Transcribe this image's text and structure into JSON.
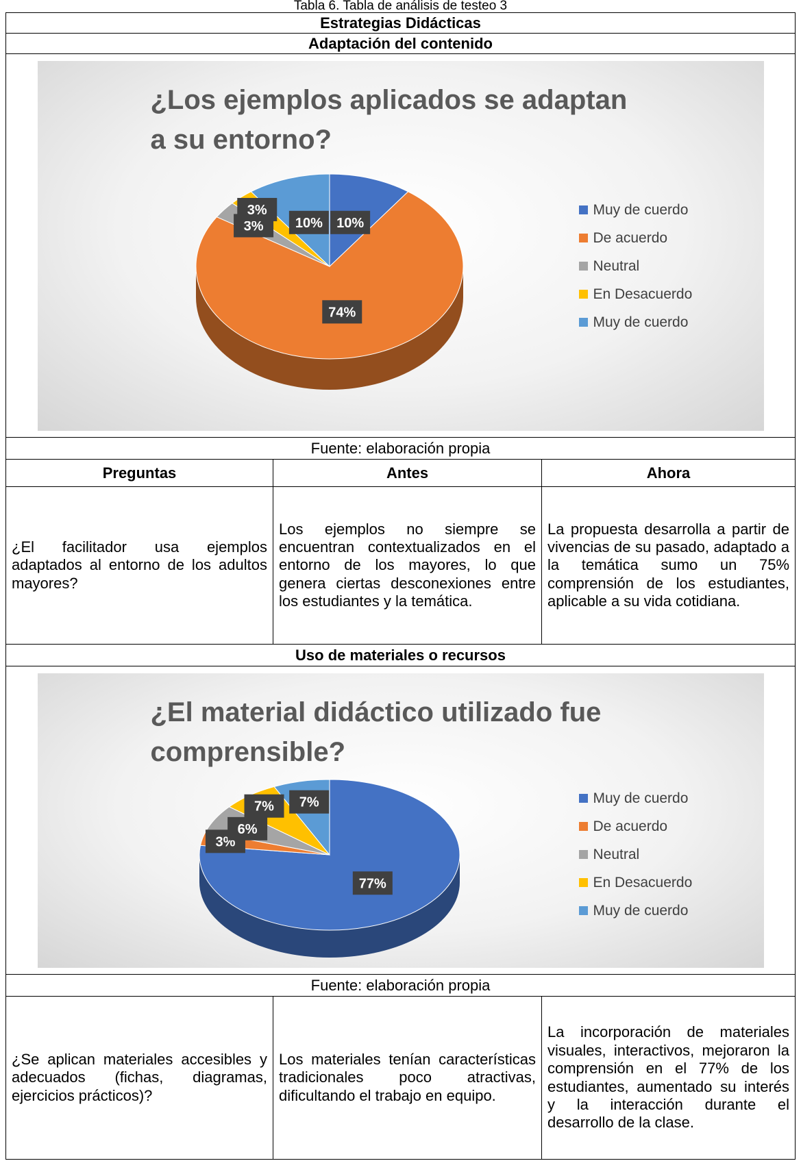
{
  "caption": "Tabla 6. Tabla de análisis de testeo 3",
  "table": {
    "heading": "Estrategias Didácticas",
    "columns": [
      "Preguntas",
      "Antes",
      "Ahora"
    ],
    "sections": [
      {
        "title": "Adaptación del contenido",
        "chart": {
          "type": "pie",
          "title": "¿Los ejemplos aplicados se adaptan a su entorno?",
          "categories": [
            "Muy de cuerdo",
            "De acuerdo",
            "Neutral",
            "En Desacuerdo",
            "Muy de cuerdo"
          ],
          "values": [
            10,
            74,
            3,
            3,
            10
          ],
          "value_labels": [
            "10%",
            "74%",
            "3%",
            "3%",
            "10%"
          ],
          "colors": [
            "#4472c4",
            "#ed7d31",
            "#a5a5a5",
            "#ffc000",
            "#5b9bd5"
          ]
        },
        "source": "Fuente: elaboración propia",
        "row": [
          "¿El facilitador usa ejemplos adaptados al entorno de los adultos mayores?",
          "Los ejemplos no siempre se encuentran contextualizados en el entorno de los mayores, lo que genera ciertas desconexiones entre los estudiantes y la temática.",
          "La propuesta desarrolla a partir de vivencias de su pasado, adaptado a la temática sumo un 75% comprensión de los estudiantes, aplicable a su vida cotidiana."
        ]
      },
      {
        "title": "Uso de materiales o recursos",
        "chart": {
          "type": "pie",
          "title": "¿El material didáctico utilizado fue comprensible?",
          "categories": [
            "Muy de cuerdo",
            "De acuerdo",
            "Neutral",
            "En Desacuerdo",
            "Muy de cuerdo"
          ],
          "values": [
            77,
            3,
            6,
            7,
            7
          ],
          "value_labels": [
            "77%",
            "3%",
            "6%",
            "7%",
            "7%"
          ],
          "colors": [
            "#4472c4",
            "#ed7d31",
            "#a5a5a5",
            "#ffc000",
            "#5b9bd5"
          ]
        },
        "source": "Fuente: elaboración propia",
        "row": [
          "¿Se aplican materiales accesibles y adecuados (fichas, diagramas, ejercicios prácticos)?",
          "Los materiales tenían características tradicionales poco atractivas, dificultando el trabajo en equipo.",
          "La incorporación de materiales visuales, interactivos, mejoraron la comprensión en el 77% de los estudiantes, aumentado su interés y la interacción durante el desarrollo de la clase."
        ]
      }
    ]
  }
}
